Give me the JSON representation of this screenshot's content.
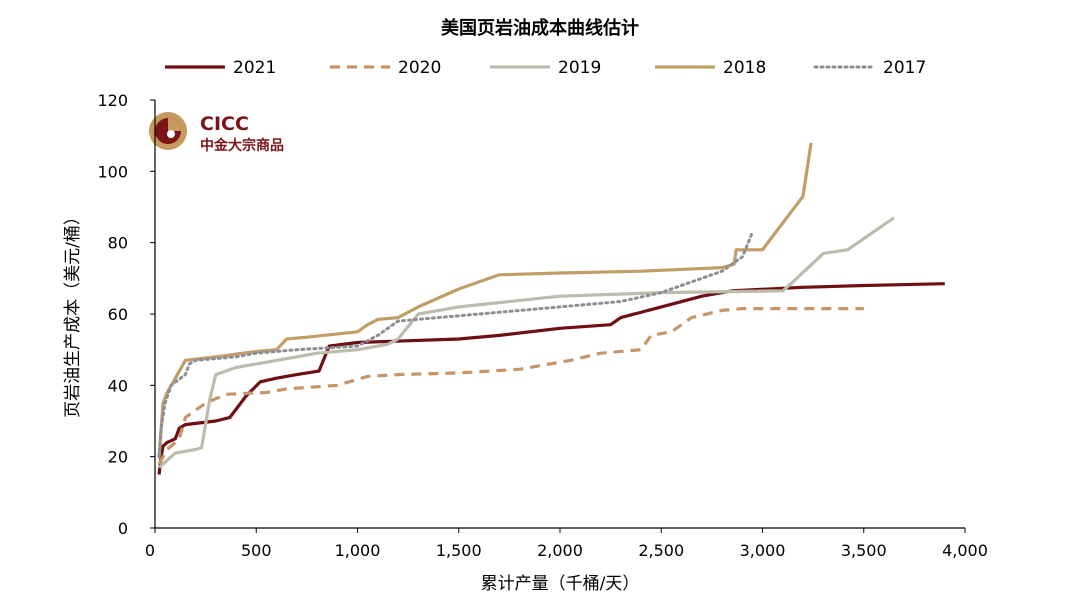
{
  "chart_data": {
    "type": "line",
    "title": "美国页岩油成本曲线估计",
    "xlabel": "累计产量（千桶/天）",
    "ylabel": "页岩油生产成本（美元/桶）",
    "xlim": [
      0,
      4000
    ],
    "ylim": [
      0,
      120
    ],
    "x_ticks": [
      0,
      500,
      1000,
      1500,
      2000,
      2500,
      3000,
      3500,
      4000
    ],
    "x_tick_labels": [
      "0",
      "500",
      "1,000",
      "1,500",
      "2,000",
      "2,500",
      "3,000",
      "3,500",
      "4,000"
    ],
    "y_ticks": [
      0,
      20,
      40,
      60,
      80,
      100,
      120
    ],
    "y_tick_labels": [
      "0",
      "20",
      "40",
      "60",
      "80",
      "100",
      "120"
    ],
    "grid": false,
    "legend_position": "top",
    "series": [
      {
        "name": "2021",
        "color": "#6e0f14",
        "style": "solid",
        "points": [
          [
            20,
            15
          ],
          [
            30,
            20
          ],
          [
            40,
            23
          ],
          [
            60,
            24
          ],
          [
            100,
            25
          ],
          [
            120,
            28
          ],
          [
            150,
            29
          ],
          [
            300,
            30
          ],
          [
            370,
            31
          ],
          [
            450,
            37
          ],
          [
            520,
            41
          ],
          [
            600,
            42
          ],
          [
            700,
            43
          ],
          [
            810,
            44
          ],
          [
            860,
            51
          ],
          [
            1000,
            52
          ],
          [
            1500,
            53
          ],
          [
            1700,
            54
          ],
          [
            2000,
            56
          ],
          [
            2250,
            57
          ],
          [
            2300,
            59
          ],
          [
            2500,
            62
          ],
          [
            2700,
            65
          ],
          [
            2850,
            66.5
          ],
          [
            3200,
            67.5
          ],
          [
            3500,
            68
          ],
          [
            3900,
            68.5
          ]
        ]
      },
      {
        "name": "2020",
        "color": "#c8956a",
        "style": "dashed",
        "points": [
          [
            20,
            18
          ],
          [
            60,
            22
          ],
          [
            120,
            25
          ],
          [
            150,
            31
          ],
          [
            250,
            35
          ],
          [
            350,
            37.5
          ],
          [
            550,
            38
          ],
          [
            650,
            39
          ],
          [
            900,
            40
          ],
          [
            1050,
            42.5
          ],
          [
            1200,
            43
          ],
          [
            1500,
            43.5
          ],
          [
            1800,
            44.5
          ],
          [
            2050,
            47
          ],
          [
            2200,
            49
          ],
          [
            2400,
            50
          ],
          [
            2450,
            54
          ],
          [
            2550,
            55
          ],
          [
            2650,
            59
          ],
          [
            2800,
            61
          ],
          [
            2900,
            61.5
          ],
          [
            3100,
            61.5
          ],
          [
            3500,
            61.5
          ]
        ]
      },
      {
        "name": "2019",
        "color": "#bbbcab",
        "style": "solid",
        "points": [
          [
            20,
            17
          ],
          [
            60,
            19
          ],
          [
            100,
            21
          ],
          [
            200,
            22
          ],
          [
            230,
            22.5
          ],
          [
            270,
            36
          ],
          [
            300,
            43
          ],
          [
            400,
            45
          ],
          [
            600,
            47
          ],
          [
            800,
            49
          ],
          [
            1000,
            50
          ],
          [
            1150,
            51.5
          ],
          [
            1200,
            53
          ],
          [
            1300,
            60
          ],
          [
            1500,
            62
          ],
          [
            2000,
            65
          ],
          [
            2500,
            66
          ],
          [
            3100,
            66.5
          ],
          [
            3150,
            69
          ],
          [
            3300,
            77
          ],
          [
            3420,
            78
          ],
          [
            3650,
            87
          ]
        ]
      },
      {
        "name": "2018",
        "color": "#c19e68",
        "style": "solid",
        "points": [
          [
            20,
            20
          ],
          [
            40,
            35
          ],
          [
            60,
            38
          ],
          [
            100,
            42
          ],
          [
            150,
            47
          ],
          [
            300,
            48
          ],
          [
            500,
            49.5
          ],
          [
            600,
            50
          ],
          [
            650,
            53
          ],
          [
            750,
            53.5
          ],
          [
            1000,
            55
          ],
          [
            1050,
            57
          ],
          [
            1100,
            58.5
          ],
          [
            1200,
            59
          ],
          [
            1300,
            62
          ],
          [
            1500,
            67
          ],
          [
            1700,
            71
          ],
          [
            2000,
            71.5
          ],
          [
            2400,
            72
          ],
          [
            2800,
            73
          ],
          [
            2860,
            74
          ],
          [
            2870,
            78
          ],
          [
            3000,
            78
          ],
          [
            3200,
            93
          ],
          [
            3240,
            108
          ]
        ]
      },
      {
        "name": "2017",
        "color": "#8d8e95",
        "style": "dotted",
        "points": [
          [
            20,
            20
          ],
          [
            30,
            28
          ],
          [
            50,
            35
          ],
          [
            80,
            40
          ],
          [
            150,
            43
          ],
          [
            170,
            46
          ],
          [
            200,
            47
          ],
          [
            400,
            48
          ],
          [
            500,
            49
          ],
          [
            700,
            50
          ],
          [
            1000,
            51
          ],
          [
            1100,
            54
          ],
          [
            1200,
            58
          ],
          [
            1500,
            59.5
          ],
          [
            2000,
            62
          ],
          [
            2300,
            63.5
          ],
          [
            2500,
            66
          ],
          [
            2700,
            70
          ],
          [
            2800,
            72
          ],
          [
            2900,
            76
          ],
          [
            2930,
            80
          ],
          [
            2950,
            83
          ]
        ]
      }
    ]
  },
  "logo": {
    "name": "CICC",
    "subtitle": "中金大宗商品"
  }
}
